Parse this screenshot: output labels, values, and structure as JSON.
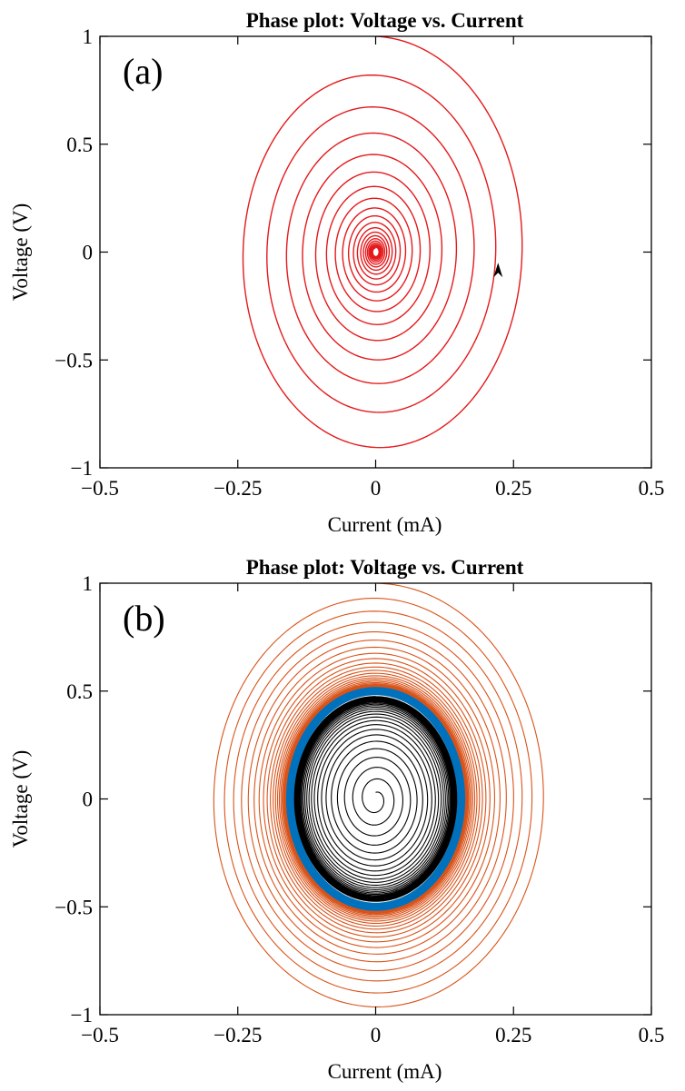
{
  "chart_data": [
    {
      "type": "line",
      "panel_label": "(a)",
      "title": "Phase plot:  Voltage vs. Current",
      "xlabel": "Current (mA)",
      "ylabel": "Voltage (V)",
      "xlim": [
        -0.5,
        0.5
      ],
      "ylim": [
        -1,
        1
      ],
      "x_ticks": [
        -0.5,
        -0.25,
        0,
        0.25,
        0.5
      ],
      "x_tick_labels": [
        "−0.5",
        "−0.25",
        "0",
        "0.25",
        "0.5"
      ],
      "y_ticks": [
        -1,
        -0.5,
        0,
        0.5,
        1
      ],
      "y_tick_labels": [
        "−1",
        "−0.5",
        "0",
        "0.5",
        "1"
      ],
      "grid": false,
      "series": [
        {
          "style": "decaying spiral",
          "color": "#e41a1c",
          "start": [
            0,
            1
          ],
          "decay_per_turn": 0.82,
          "voltage_amplitude": 1.0,
          "current_amplitude": 0.31,
          "turns": 20,
          "arrow": {
            "at": [
              0.222,
              -0.1
            ],
            "direction": "up",
            "color": "#000000"
          }
        }
      ]
    },
    {
      "type": "line",
      "panel_label": "(b)",
      "title": "Phase plot:  Voltage vs. Current",
      "xlabel": "Current (mA)",
      "ylabel": "Voltage (V)",
      "xlim": [
        -0.5,
        0.5
      ],
      "ylim": [
        -1,
        1
      ],
      "x_ticks": [
        -0.5,
        -0.25,
        0,
        0.25,
        0.5
      ],
      "x_tick_labels": [
        "−0.5",
        "−0.25",
        "0",
        "0.25",
        "0.5"
      ],
      "y_ticks": [
        -1,
        -0.5,
        0,
        0.5,
        1
      ],
      "y_tick_labels": [
        "−1",
        "−0.5",
        "0",
        "0.5",
        "1"
      ],
      "grid": false,
      "series": [
        {
          "style": "spiral decaying onto limit cycle",
          "color": "#d95319",
          "start_voltage": 1.0,
          "end_voltage": 0.5,
          "current_ratio": 0.31,
          "turns": 30
        },
        {
          "style": "limit cycle",
          "color": "#0072bd",
          "voltage_amplitude": 0.5,
          "current_amplitude": 0.155
        },
        {
          "style": "spiral growing onto limit cycle",
          "color": "#000000",
          "start_voltage": 0.03,
          "end_voltage": 0.48,
          "current_ratio": 0.31,
          "turns": 30
        }
      ]
    }
  ]
}
